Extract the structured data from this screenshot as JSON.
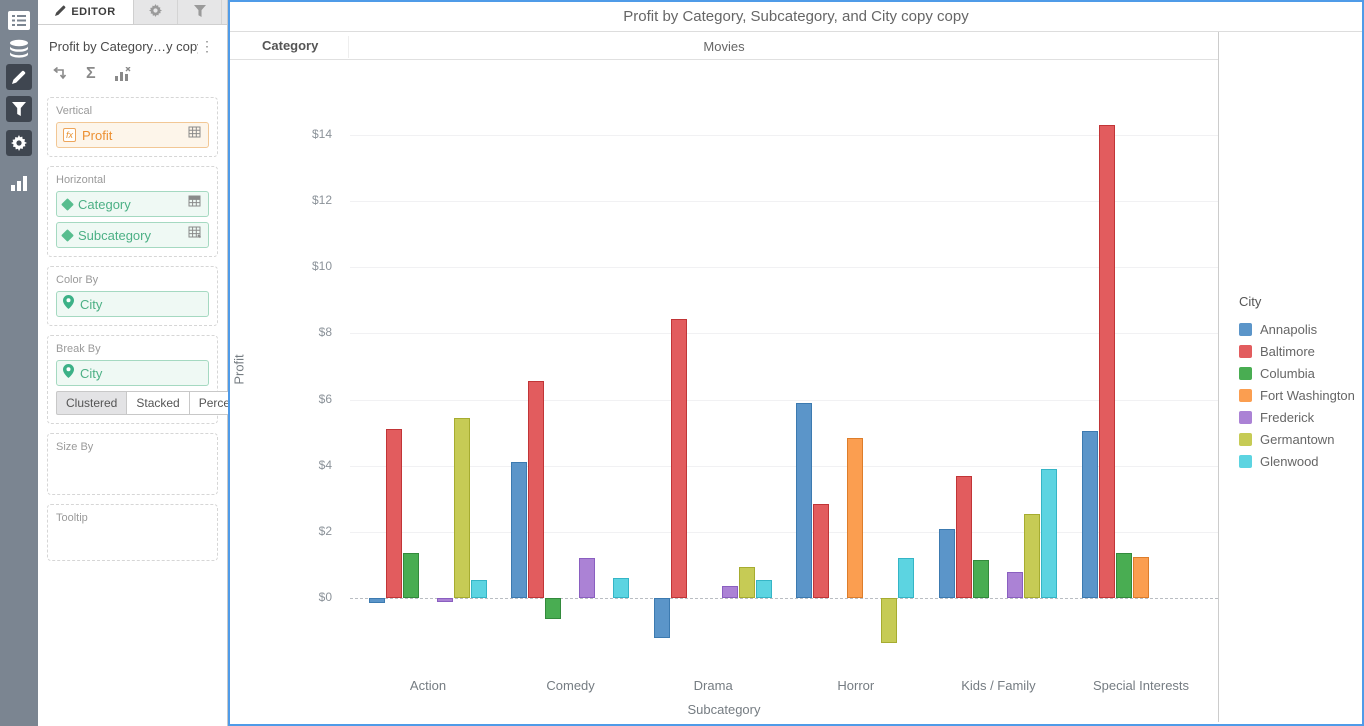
{
  "left_rail": {
    "icons": [
      "list",
      "database",
      "pencil",
      "filter",
      "gear",
      "bar-chart"
    ]
  },
  "editor": {
    "tabs": [
      {
        "label": "EDITOR"
      }
    ],
    "title": "Profit by Category…y copy",
    "sections": {
      "vertical": {
        "label": "Vertical",
        "field": "Profit",
        "badge": "fx"
      },
      "horizontal": {
        "label": "Horizontal",
        "fields": [
          "Category",
          "Subcategory"
        ]
      },
      "color_by": {
        "label": "Color By",
        "field": "City"
      },
      "break_by": {
        "label": "Break By",
        "field": "City",
        "modes": [
          "Clustered",
          "Stacked",
          "Percent"
        ],
        "active_mode": "Clustered"
      },
      "size_by": {
        "label": "Size By"
      },
      "tooltip": {
        "label": "Tooltip"
      }
    }
  },
  "chart": {
    "title": "Profit by Category, Subcategory, and City copy copy",
    "facet": {
      "label": "Category",
      "value": "Movies"
    },
    "y_axis_label": "Profit",
    "x_axis_label": "Subcategory",
    "legend": {
      "title": "City"
    },
    "selection_border_color": "#4f9be8"
  },
  "chart_data": {
    "type": "bar",
    "mode": "clustered",
    "title": "Profit by Category, Subcategory, and City copy copy",
    "facet_value": "Movies",
    "xlabel": "Subcategory",
    "ylabel": "Profit",
    "ylim": [
      -2,
      15
    ],
    "grid": true,
    "legend_position": "right",
    "y_tick_step": 2,
    "y_tick_labels": [
      "$0",
      "$2",
      "$4",
      "$6",
      "$8",
      "$10",
      "$12",
      "$14"
    ],
    "categories": [
      "Action",
      "Comedy",
      "Drama",
      "Horror",
      "Kids / Family",
      "Special Interests"
    ],
    "series": [
      {
        "name": "Annapolis",
        "color": "#5b95c9",
        "border": "#3c7ab0",
        "values": [
          -0.15,
          4.1,
          -1.2,
          5.9,
          2.1,
          5.05
        ]
      },
      {
        "name": "Baltimore",
        "color": "#e25c5e",
        "border": "#c13537",
        "values": [
          5.1,
          6.55,
          8.45,
          2.85,
          3.7,
          14.3
        ]
      },
      {
        "name": "Columbia",
        "color": "#49ad52",
        "border": "#338a3c",
        "values": [
          1.35,
          -0.65,
          null,
          null,
          1.15,
          1.35
        ]
      },
      {
        "name": "Fort Washington",
        "color": "#fb9e50",
        "border": "#dd7d2b",
        "values": [
          null,
          null,
          null,
          4.85,
          null,
          1.25
        ]
      },
      {
        "name": "Frederick",
        "color": "#ab82d5",
        "border": "#8a5fc0",
        "values": [
          -0.12,
          1.2,
          0.35,
          null,
          0.8,
          null
        ]
      },
      {
        "name": "Germantown",
        "color": "#c6cb55",
        "border": "#a6ac30",
        "values": [
          5.45,
          null,
          0.95,
          -1.35,
          2.55,
          null
        ]
      },
      {
        "name": "Glenwood",
        "color": "#5cd4e1",
        "border": "#35b5c6",
        "values": [
          0.55,
          0.6,
          0.55,
          1.2,
          3.9,
          null
        ]
      }
    ]
  }
}
